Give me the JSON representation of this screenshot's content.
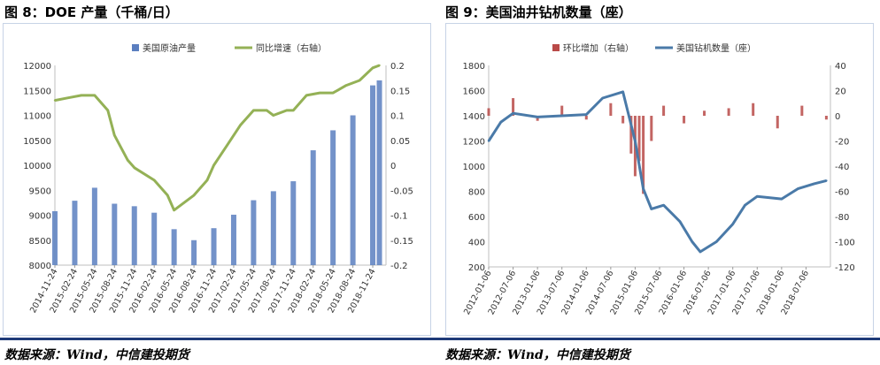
{
  "figures": [
    {
      "title": "图 8：DOE 产量（千桶/日）",
      "source": "数据来源：Wind，中信建投期货"
    },
    {
      "title": "图 9：美国油井钻机数量（座）",
      "source": "数据来源：Wind，中信建投期货"
    }
  ],
  "chart_data": [
    {
      "type": "bar",
      "series": [
        {
          "name": "美国原油产量",
          "type": "bar",
          "axis": "left",
          "color": "#5b7fc0",
          "x": [
            "2014-11",
            "2015-02",
            "2015-05",
            "2015-08",
            "2015-11",
            "2016-02",
            "2016-05",
            "2016-08",
            "2016-11",
            "2017-02",
            "2017-05",
            "2017-08",
            "2017-11",
            "2018-02",
            "2018-05",
            "2018-08",
            "2018-11",
            "2018-12"
          ],
          "values": [
            9080,
            9290,
            9550,
            9230,
            9180,
            9050,
            8720,
            8500,
            8740,
            9010,
            9300,
            9480,
            9680,
            10300,
            10700,
            11000,
            11600,
            11700
          ]
        },
        {
          "name": "同比增速（右轴）",
          "type": "line",
          "axis": "right",
          "color": "#94b156",
          "x": [
            "2014-11",
            "2015-01",
            "2015-03",
            "2015-05",
            "2015-07",
            "2015-08",
            "2015-10",
            "2015-11",
            "2016-02",
            "2016-04",
            "2016-05",
            "2016-06",
            "2016-08",
            "2016-10",
            "2016-11",
            "2017-01",
            "2017-03",
            "2017-05",
            "2017-07",
            "2017-08",
            "2017-10",
            "2017-11",
            "2018-01",
            "2018-03",
            "2018-05",
            "2018-07",
            "2018-09",
            "2018-11",
            "2018-12"
          ],
          "values": [
            0.13,
            0.135,
            0.14,
            0.14,
            0.11,
            0.06,
            0.01,
            -0.005,
            -0.03,
            -0.06,
            -0.09,
            -0.08,
            -0.06,
            -0.03,
            0.0,
            0.04,
            0.08,
            0.11,
            0.11,
            0.1,
            0.11,
            0.11,
            0.14,
            0.145,
            0.145,
            0.16,
            0.17,
            0.195,
            0.2
          ]
        }
      ],
      "xticks": [
        "2014-11-24",
        "2015-02-24",
        "2015-05-24",
        "2015-08-24",
        "2015-11-24",
        "2016-02-24",
        "2016-05-24",
        "2016-08-24",
        "2016-11-24",
        "2017-02-24",
        "2017-05-24",
        "2017-08-24",
        "2017-11-24",
        "2018-02-24",
        "2018-05-24",
        "2018-08-24",
        "2018-11-24"
      ],
      "yticks_left": [
        "8000",
        "8500",
        "9000",
        "9500",
        "10000",
        "10500",
        "11000",
        "11500",
        "12000"
      ],
      "yticks_right": [
        "-0.2",
        "-0.15",
        "-0.1",
        "-0.05",
        "0",
        "0.05",
        "0.1",
        "0.15",
        "0.2"
      ],
      "ylim_left": [
        8000,
        12000
      ],
      "ylim_right": [
        -0.2,
        0.2
      ],
      "legend_position": "top"
    },
    {
      "type": "bar",
      "series": [
        {
          "name": "环比增加（右轴）",
          "type": "bar",
          "axis": "right",
          "color": "#b94a48",
          "x": [
            "2012-01",
            "2012-07",
            "2013-01",
            "2013-07",
            "2014-01",
            "2014-07",
            "2014-10",
            "2014-12",
            "2015-01",
            "2015-02",
            "2015-03",
            "2015-05",
            "2015-08",
            "2016-01",
            "2016-06",
            "2016-12",
            "2017-06",
            "2017-12",
            "2018-06",
            "2018-12"
          ],
          "values": [
            6,
            14,
            -4,
            8,
            -3,
            10,
            -6,
            -30,
            -48,
            -36,
            -62,
            -20,
            8,
            -6,
            4,
            6,
            10,
            -10,
            8,
            -3
          ]
        },
        {
          "name": "美国钻机数量（座）",
          "type": "line",
          "axis": "left",
          "color": "#4a7aa8",
          "x": [
            "2012-01",
            "2012-04",
            "2012-07",
            "2013-01",
            "2013-07",
            "2014-01",
            "2014-05",
            "2014-10",
            "2015-01",
            "2015-03",
            "2015-05",
            "2015-08",
            "2015-12",
            "2016-03",
            "2016-05",
            "2016-09",
            "2017-01",
            "2017-04",
            "2017-07",
            "2018-01",
            "2018-05",
            "2018-09",
            "2018-12"
          ],
          "values": [
            1200,
            1350,
            1420,
            1390,
            1400,
            1410,
            1540,
            1590,
            1200,
            820,
            660,
            690,
            560,
            400,
            320,
            400,
            540,
            690,
            760,
            740,
            820,
            860,
            885
          ]
        }
      ],
      "xticks": [
        "2012-01-06",
        "2012-07-06",
        "2013-01-06",
        "2013-07-06",
        "2014-01-06",
        "2014-07-06",
        "2015-01-06",
        "2015-07-06",
        "2016-01-06",
        "2016-07-06",
        "2017-01-06",
        "2017-07-06",
        "2018-01-06",
        "2018-07-06"
      ],
      "yticks_left": [
        "200",
        "400",
        "600",
        "800",
        "1000",
        "1200",
        "1400",
        "1600",
        "1800"
      ],
      "yticks_right": [
        "-120",
        "-100",
        "-80",
        "-60",
        "-40",
        "-20",
        "0",
        "20",
        "40"
      ],
      "ylim_left": [
        200,
        1800
      ],
      "ylim_right": [
        -120,
        40
      ],
      "legend_position": "top"
    }
  ]
}
